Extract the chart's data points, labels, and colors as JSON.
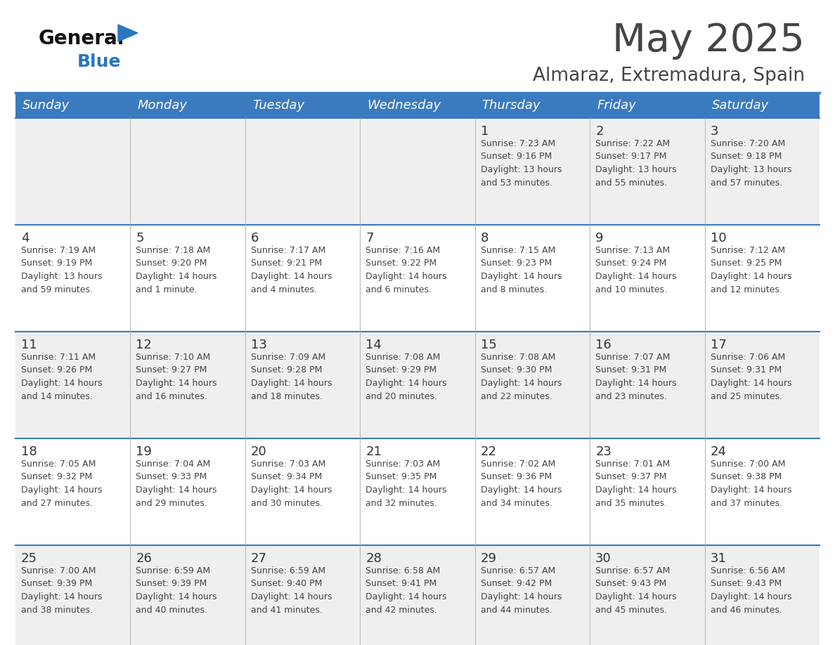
{
  "title": "May 2025",
  "subtitle": "Almaraz, Extremadura, Spain",
  "days_of_week": [
    "Sunday",
    "Monday",
    "Tuesday",
    "Wednesday",
    "Thursday",
    "Friday",
    "Saturday"
  ],
  "header_bg": "#3a7abf",
  "header_text": "#ffffff",
  "row_bg_odd": "#efefef",
  "row_bg_even": "#ffffff",
  "divider_color": "#3a7abf",
  "text_color": "#444444",
  "day_num_color": "#333333",
  "logo_general_color": "#111111",
  "logo_blue_color": "#2878be",
  "cal_data": [
    [
      {
        "day": "",
        "info": ""
      },
      {
        "day": "",
        "info": ""
      },
      {
        "day": "",
        "info": ""
      },
      {
        "day": "",
        "info": ""
      },
      {
        "day": "1",
        "info": "Sunrise: 7:23 AM\nSunset: 9:16 PM\nDaylight: 13 hours\nand 53 minutes."
      },
      {
        "day": "2",
        "info": "Sunrise: 7:22 AM\nSunset: 9:17 PM\nDaylight: 13 hours\nand 55 minutes."
      },
      {
        "day": "3",
        "info": "Sunrise: 7:20 AM\nSunset: 9:18 PM\nDaylight: 13 hours\nand 57 minutes."
      }
    ],
    [
      {
        "day": "4",
        "info": "Sunrise: 7:19 AM\nSunset: 9:19 PM\nDaylight: 13 hours\nand 59 minutes."
      },
      {
        "day": "5",
        "info": "Sunrise: 7:18 AM\nSunset: 9:20 PM\nDaylight: 14 hours\nand 1 minute."
      },
      {
        "day": "6",
        "info": "Sunrise: 7:17 AM\nSunset: 9:21 PM\nDaylight: 14 hours\nand 4 minutes."
      },
      {
        "day": "7",
        "info": "Sunrise: 7:16 AM\nSunset: 9:22 PM\nDaylight: 14 hours\nand 6 minutes."
      },
      {
        "day": "8",
        "info": "Sunrise: 7:15 AM\nSunset: 9:23 PM\nDaylight: 14 hours\nand 8 minutes."
      },
      {
        "day": "9",
        "info": "Sunrise: 7:13 AM\nSunset: 9:24 PM\nDaylight: 14 hours\nand 10 minutes."
      },
      {
        "day": "10",
        "info": "Sunrise: 7:12 AM\nSunset: 9:25 PM\nDaylight: 14 hours\nand 12 minutes."
      }
    ],
    [
      {
        "day": "11",
        "info": "Sunrise: 7:11 AM\nSunset: 9:26 PM\nDaylight: 14 hours\nand 14 minutes."
      },
      {
        "day": "12",
        "info": "Sunrise: 7:10 AM\nSunset: 9:27 PM\nDaylight: 14 hours\nand 16 minutes."
      },
      {
        "day": "13",
        "info": "Sunrise: 7:09 AM\nSunset: 9:28 PM\nDaylight: 14 hours\nand 18 minutes."
      },
      {
        "day": "14",
        "info": "Sunrise: 7:08 AM\nSunset: 9:29 PM\nDaylight: 14 hours\nand 20 minutes."
      },
      {
        "day": "15",
        "info": "Sunrise: 7:08 AM\nSunset: 9:30 PM\nDaylight: 14 hours\nand 22 minutes."
      },
      {
        "day": "16",
        "info": "Sunrise: 7:07 AM\nSunset: 9:31 PM\nDaylight: 14 hours\nand 23 minutes."
      },
      {
        "day": "17",
        "info": "Sunrise: 7:06 AM\nSunset: 9:31 PM\nDaylight: 14 hours\nand 25 minutes."
      }
    ],
    [
      {
        "day": "18",
        "info": "Sunrise: 7:05 AM\nSunset: 9:32 PM\nDaylight: 14 hours\nand 27 minutes."
      },
      {
        "day": "19",
        "info": "Sunrise: 7:04 AM\nSunset: 9:33 PM\nDaylight: 14 hours\nand 29 minutes."
      },
      {
        "day": "20",
        "info": "Sunrise: 7:03 AM\nSunset: 9:34 PM\nDaylight: 14 hours\nand 30 minutes."
      },
      {
        "day": "21",
        "info": "Sunrise: 7:03 AM\nSunset: 9:35 PM\nDaylight: 14 hours\nand 32 minutes."
      },
      {
        "day": "22",
        "info": "Sunrise: 7:02 AM\nSunset: 9:36 PM\nDaylight: 14 hours\nand 34 minutes."
      },
      {
        "day": "23",
        "info": "Sunrise: 7:01 AM\nSunset: 9:37 PM\nDaylight: 14 hours\nand 35 minutes."
      },
      {
        "day": "24",
        "info": "Sunrise: 7:00 AM\nSunset: 9:38 PM\nDaylight: 14 hours\nand 37 minutes."
      }
    ],
    [
      {
        "day": "25",
        "info": "Sunrise: 7:00 AM\nSunset: 9:39 PM\nDaylight: 14 hours\nand 38 minutes."
      },
      {
        "day": "26",
        "info": "Sunrise: 6:59 AM\nSunset: 9:39 PM\nDaylight: 14 hours\nand 40 minutes."
      },
      {
        "day": "27",
        "info": "Sunrise: 6:59 AM\nSunset: 9:40 PM\nDaylight: 14 hours\nand 41 minutes."
      },
      {
        "day": "28",
        "info": "Sunrise: 6:58 AM\nSunset: 9:41 PM\nDaylight: 14 hours\nand 42 minutes."
      },
      {
        "day": "29",
        "info": "Sunrise: 6:57 AM\nSunset: 9:42 PM\nDaylight: 14 hours\nand 44 minutes."
      },
      {
        "day": "30",
        "info": "Sunrise: 6:57 AM\nSunset: 9:43 PM\nDaylight: 14 hours\nand 45 minutes."
      },
      {
        "day": "31",
        "info": "Sunrise: 6:56 AM\nSunset: 9:43 PM\nDaylight: 14 hours\nand 46 minutes."
      }
    ]
  ]
}
